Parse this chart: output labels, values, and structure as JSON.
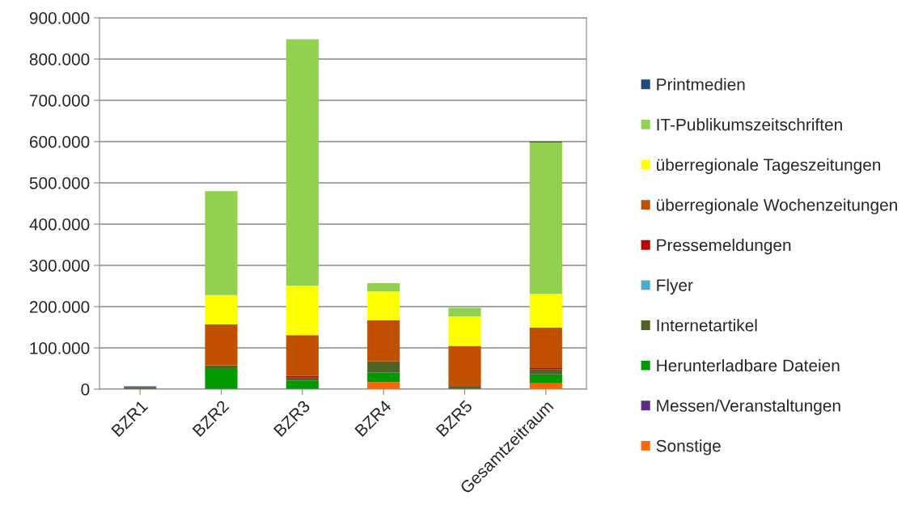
{
  "chart_data": {
    "type": "bar",
    "stacked": true,
    "categories": [
      "BZR1",
      "BZR2",
      "BZR3",
      "BZR4",
      "BZR5",
      "Gesamtzeitraum"
    ],
    "series": [
      {
        "name": "Sonstige",
        "color": "#ff6600",
        "values": [
          0,
          0,
          0,
          17000,
          0,
          14000
        ]
      },
      {
        "name": "Messen/Veranstaltungen",
        "color": "#5f2c83",
        "values": [
          0,
          0,
          0,
          0,
          0,
          0
        ]
      },
      {
        "name": "Herunterladbare Dateien",
        "color": "#009900",
        "values": [
          0,
          51000,
          21000,
          23000,
          0,
          22000
        ]
      },
      {
        "name": "Internetartikel",
        "color": "#4f6228",
        "values": [
          5000,
          7000,
          7000,
          27000,
          6000,
          12000
        ]
      },
      {
        "name": "Flyer",
        "color": "#4bacc6",
        "values": [
          0,
          0,
          0,
          0,
          0,
          0
        ]
      },
      {
        "name": "Pressemeldungen",
        "color": "#c00000",
        "values": [
          0,
          0,
          4000,
          0,
          0,
          3000
        ]
      },
      {
        "name": "überregionale Wochenzeitungen",
        "color": "#c04f00",
        "values": [
          0,
          99000,
          99000,
          100000,
          99000,
          98000
        ]
      },
      {
        "name": "überregionale Tageszeitungen",
        "color": "#ffff00",
        "values": [
          0,
          71000,
          120000,
          70000,
          71000,
          82000
        ]
      },
      {
        "name": "IT-Publikumszeitschriften",
        "color": "#92d050",
        "values": [
          0,
          252000,
          597000,
          20000,
          21000,
          367000
        ]
      },
      {
        "name": "Printmedien",
        "color": "#1f497d",
        "values": [
          2000,
          0,
          0,
          0,
          0,
          2000
        ]
      }
    ],
    "ylim": [
      0,
      900000
    ],
    "yticks": [
      {
        "value": 0,
        "label": "0"
      },
      {
        "value": 100000,
        "label": "100.000"
      },
      {
        "value": 200000,
        "label": "200.000"
      },
      {
        "value": 300000,
        "label": "300.000"
      },
      {
        "value": 400000,
        "label": "400.000"
      },
      {
        "value": 500000,
        "label": "500.000"
      },
      {
        "value": 600000,
        "label": "600.000"
      },
      {
        "value": 700000,
        "label": "700.000"
      },
      {
        "value": 800000,
        "label": "800.000"
      },
      {
        "value": 900000,
        "label": "900.000"
      }
    ],
    "grid": "y",
    "legend": "right"
  }
}
